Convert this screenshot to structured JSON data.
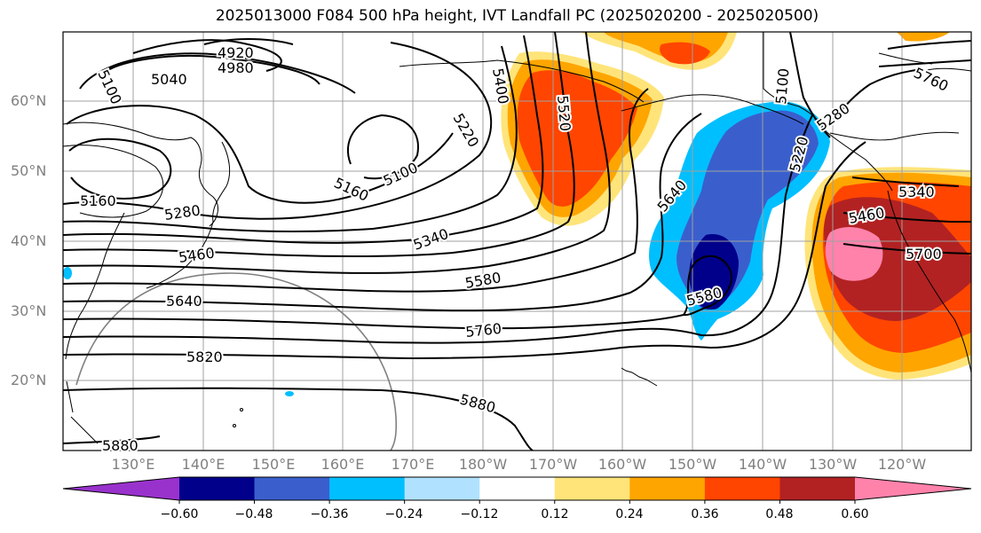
{
  "title": "2025013000 F084 500 hPa height, IVT Landfall PC (2025020200 - 2025020500)",
  "lat_labels": [
    "60°N",
    "50°N",
    "40°N",
    "30°N",
    "20°N"
  ],
  "lon_labels": [
    "130°E",
    "140°E",
    "150°E",
    "160°E",
    "170°E",
    "180°W",
    "170°W",
    "160°W",
    "150°W",
    "140°W",
    "130°W",
    "120°W"
  ],
  "contour_labels": [
    "4920",
    "4980",
    "5040",
    "5100",
    "5100",
    "5160",
    "5160",
    "5220",
    "5280",
    "5340",
    "5400",
    "5460",
    "5520",
    "5580",
    "5640",
    "5760",
    "5820",
    "5880",
    "5880",
    "5580",
    "5640",
    "5220",
    "5340",
    "5460",
    "5700",
    "5100",
    "5280",
    "5760"
  ],
  "colorbar": {
    "ticks": [
      "−0.60",
      "−0.48",
      "−0.36",
      "−0.24",
      "−0.12",
      "0.12",
      "0.24",
      "0.36",
      "0.48",
      "0.60"
    ],
    "colors": [
      "#9932cc",
      "#00008b",
      "#3a5fcd",
      "#00bfff",
      "#b0e2ff",
      "#ffffff",
      "#ffe47a",
      "#ffa500",
      "#ff4500",
      "#b22222",
      "#ff82ab"
    ]
  }
}
